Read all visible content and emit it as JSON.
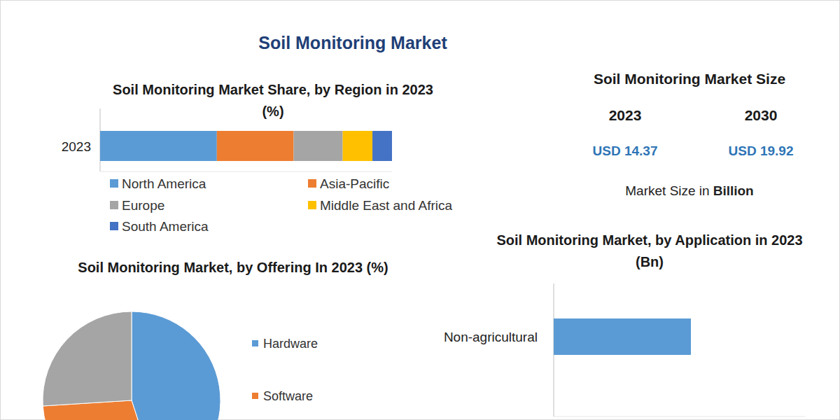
{
  "title": "Soil Monitoring Market",
  "market_size": {
    "title": "Soil Monitoring Market Size",
    "years": [
      "2023",
      "2030"
    ],
    "values": [
      "USD 14.37",
      "USD 19.92"
    ],
    "unit_text": "Market Size in",
    "unit": "Billion"
  },
  "chart_data": [
    {
      "type": "bar",
      "title": "Soil Monitoring Market Share, by Region in 2023 (%)",
      "orientation": "horizontal",
      "stacked": true,
      "categories": [
        "2023"
      ],
      "series": [
        {
          "name": "North America",
          "color": "#5b9bd5",
          "values": [
            40
          ]
        },
        {
          "name": "Asia-Pacific",
          "color": "#ed7d31",
          "values": [
            26.3
          ]
        },
        {
          "name": "Europe",
          "color": "#a5a5a5",
          "values": [
            16.8
          ]
        },
        {
          "name": "Middle East and Africa",
          "color": "#ffc000",
          "values": [
            10.2
          ]
        },
        {
          "name": "South America",
          "color": "#4472c4",
          "values": [
            6.7
          ]
        }
      ],
      "xlim": [
        0,
        100
      ],
      "tick_labels": "y",
      "legend": "bottom"
    },
    {
      "type": "pie",
      "title": "Soil Monitoring Market, by Offering In 2023 (%)",
      "categories": [
        "Hardware",
        "Software",
        null
      ],
      "values": [
        45,
        29,
        26
      ],
      "colors": [
        "#5b9bd5",
        "#ed7d31",
        "#a5a5a5"
      ],
      "legend": "right"
    },
    {
      "type": "bar",
      "title": "Soil Monitoring Market, by Application in 2023 (Bn)",
      "orientation": "horizontal",
      "categories": [
        "Non-agricultural"
      ],
      "values": [
        5.46
      ],
      "color": "#5b9bd5",
      "xlim": [
        0,
        10
      ],
      "tick_labels": "y"
    }
  ]
}
